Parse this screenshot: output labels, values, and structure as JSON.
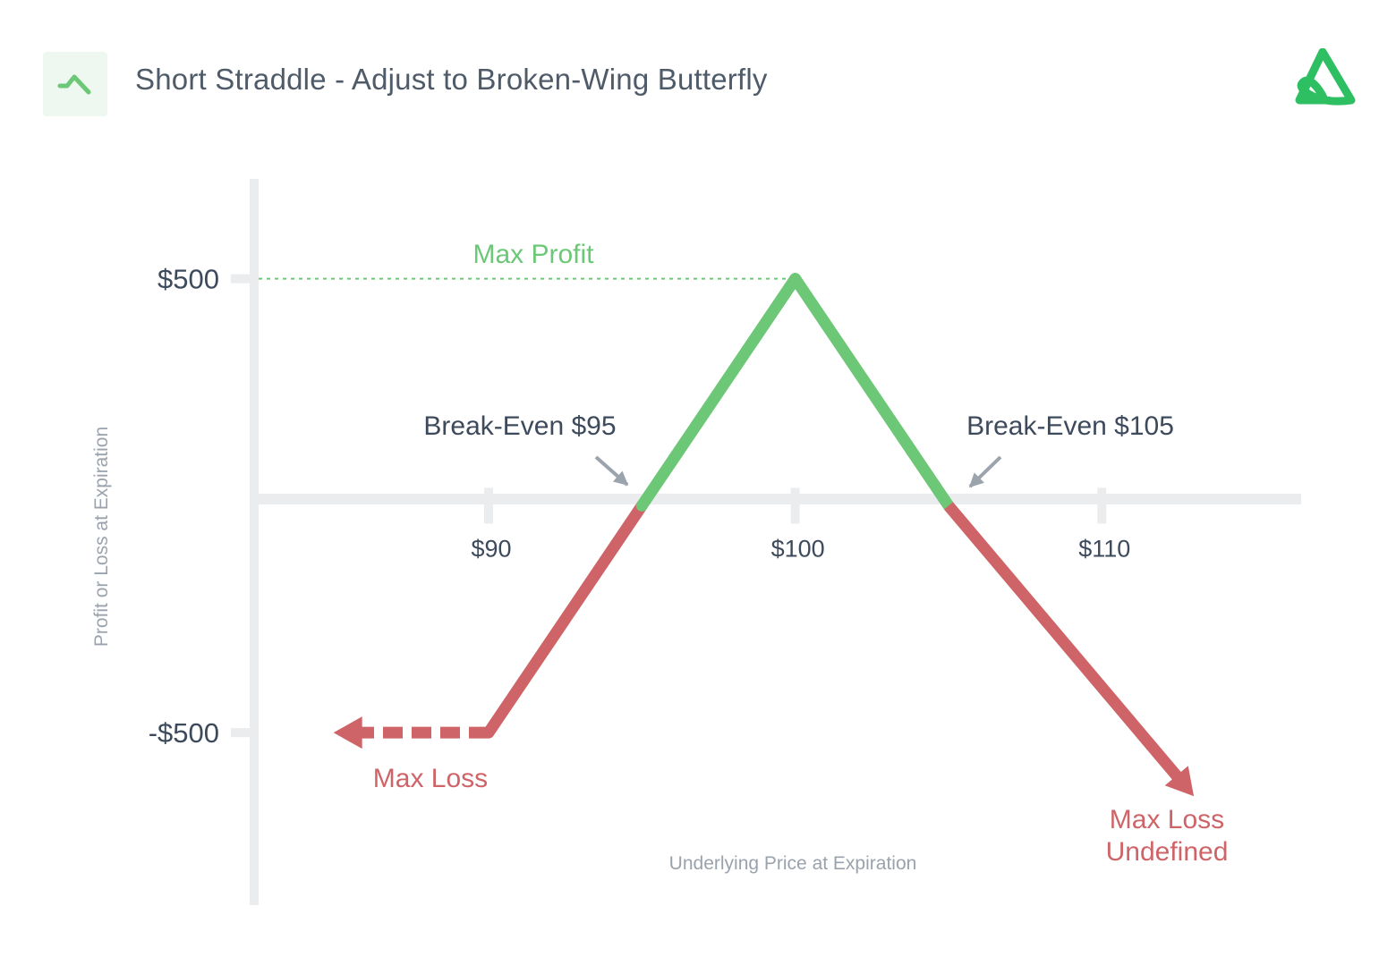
{
  "header": {
    "title": "Short Straddle - Adjust to Broken-Wing Butterfly",
    "badge_icon": "trend-line-icon",
    "logo_icon": "brand-logo-icon"
  },
  "colors": {
    "profit": "#6cc776",
    "loss": "#cf6468",
    "axis": "#ebecee",
    "text": "#3d4a5c",
    "muted": "#9aa3ad",
    "arrow": "#9ba3ac"
  },
  "chart_data": {
    "type": "line",
    "xlabel": "Underlying Price at Expiration",
    "ylabel": "Profit or Loss at Expiration",
    "x_ticks": [
      {
        "value": 90,
        "label": "$90"
      },
      {
        "value": 100,
        "label": "$100"
      },
      {
        "value": 110,
        "label": "$110"
      }
    ],
    "y_ticks": [
      {
        "value": 500,
        "label": "$500"
      },
      {
        "value": -500,
        "label": "-$500"
      }
    ],
    "xlim": [
      82.5,
      116.5
    ],
    "ylim": [
      -880,
      720
    ],
    "series": [
      {
        "values_x": [
          90,
          95,
          100,
          105,
          113
        ],
        "values_y": [
          -500,
          0,
          500,
          0,
          -640
        ]
      }
    ],
    "dashed_extension": {
      "from_x": 90,
      "to_x": 85,
      "y": -500
    },
    "annotations": {
      "max_profit": {
        "label": "Max Profit",
        "y": 500
      },
      "break_even_low": {
        "label": "Break-Even $95",
        "x": 95
      },
      "break_even_high": {
        "label": "Break-Even $105",
        "x": 105
      },
      "max_loss": {
        "label": "Max Loss"
      },
      "max_loss_undefined": {
        "line1": "Max Loss",
        "line2": "Undefined"
      }
    }
  }
}
